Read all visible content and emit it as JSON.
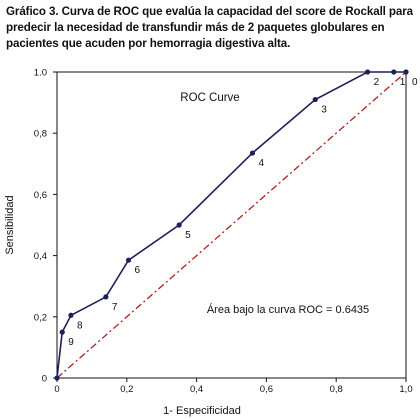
{
  "caption": {
    "line1": "Gráfico 3. Curva de ROC que evalúa la capacidad del score de Rockall para",
    "line2": "predecir la necesidad de transfundir más de 2 paquetes globulares en",
    "line3": "pacientes que acuden por hemorragia digestiva alta."
  },
  "colors": {
    "roc_line": "#1f1f5e",
    "point": "#1f1f5e",
    "reference_line": "#b0201e",
    "axis": "#111111"
  },
  "chart_data": {
    "type": "line",
    "title": "ROC  Curve",
    "xlabel": "1- Especificidad",
    "ylabel": "Sensibilidad",
    "xlim": [
      0,
      1.0
    ],
    "ylim": [
      0,
      1.0
    ],
    "x_ticks": [
      "0",
      "0,2",
      "0,4",
      "0,6",
      "0,8",
      "1,0"
    ],
    "y_ticks": [
      "0",
      "0,2",
      "0,4",
      "0,6",
      "0,8",
      "1.0"
    ],
    "grid": false,
    "annotation": "Área bajo la curva ROC = 0.6435",
    "series": [
      {
        "name": "",
        "points": [
          {
            "label": "",
            "x": 0.0,
            "y": 0.0
          },
          {
            "label": "9",
            "x": 0.015,
            "y": 0.15
          },
          {
            "label": "8",
            "x": 0.04,
            "y": 0.205
          },
          {
            "label": "7",
            "x": 0.14,
            "y": 0.265
          },
          {
            "label": "6",
            "x": 0.205,
            "y": 0.385
          },
          {
            "label": "5",
            "x": 0.35,
            "y": 0.5
          },
          {
            "label": "4",
            "x": 0.56,
            "y": 0.735
          },
          {
            "label": "3",
            "x": 0.74,
            "y": 0.91
          },
          {
            "label": "2",
            "x": 0.89,
            "y": 1.0
          },
          {
            "label": "1",
            "x": 0.965,
            "y": 1.0
          },
          {
            "label": "0",
            "x": 1.0,
            "y": 1.0
          }
        ]
      }
    ],
    "reference_line": {
      "x": [
        0,
        1
      ],
      "y": [
        0,
        1
      ]
    }
  }
}
